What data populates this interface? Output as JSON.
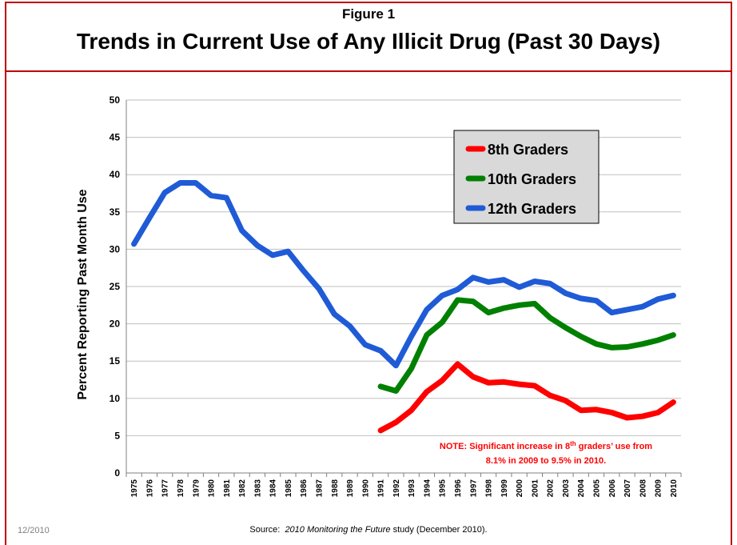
{
  "header": {
    "figure_label": "Figure 1",
    "title": "Trends in Current Use of Any Illicit Drug (Past 30 Days)"
  },
  "footer": {
    "date": "12/2010",
    "source_prefix": "Source:  ",
    "source_italic": "2010 Monitoring the Future",
    "source_suffix": " study (December 2010)."
  },
  "note": {
    "line1_a": "NOTE:  Significant increase in 8",
    "line1_sup": "th",
    "line1_b": " graders’ use from",
    "line2": "8.1% in 2009 to 9.5% in 2010."
  },
  "colors": {
    "frame": "#c00000",
    "grades8": "#ff0000",
    "grades10": "#008000",
    "grades12": "#1f5bd6",
    "legend_bg": "#d9d9d9",
    "note": "#ff0000"
  },
  "chart_data": {
    "type": "line",
    "title": "",
    "ylabel": "Percent Reporting Past Month Use",
    "xlabel": "",
    "ylim": [
      0,
      50
    ],
    "yticks": [
      0,
      5,
      10,
      15,
      20,
      25,
      30,
      35,
      40,
      45,
      50
    ],
    "grid": true,
    "legend": "top-right",
    "x": [
      "1975",
      "1976",
      "1977",
      "1978",
      "1979",
      "1980",
      "1981",
      "1982",
      "1983",
      "1984",
      "1985",
      "1986",
      "1987",
      "1988",
      "1989",
      "1990",
      "1991",
      "1992",
      "1993",
      "1994",
      "1995",
      "1996",
      "1997",
      "1998",
      "1999",
      "2000",
      "2001",
      "2002",
      "2003",
      "2004",
      "2005",
      "2006",
      "2007",
      "2008",
      "2009",
      "2010"
    ],
    "series": [
      {
        "name": "8th Graders",
        "color": "#ff0000",
        "values": [
          null,
          null,
          null,
          null,
          null,
          null,
          null,
          null,
          null,
          null,
          null,
          null,
          null,
          null,
          null,
          null,
          5.7,
          6.8,
          8.4,
          10.9,
          12.4,
          14.6,
          12.9,
          12.1,
          12.2,
          11.9,
          11.7,
          10.4,
          9.7,
          8.4,
          8.5,
          8.1,
          7.4,
          7.6,
          8.1,
          9.5
        ]
      },
      {
        "name": "10th Graders",
        "color": "#008000",
        "values": [
          null,
          null,
          null,
          null,
          null,
          null,
          null,
          null,
          null,
          null,
          null,
          null,
          null,
          null,
          null,
          null,
          11.6,
          11.0,
          14.0,
          18.5,
          20.2,
          23.2,
          23.0,
          21.5,
          22.1,
          22.5,
          22.7,
          20.8,
          19.5,
          18.3,
          17.3,
          16.8,
          16.9,
          17.3,
          17.8,
          18.5
        ]
      },
      {
        "name": "12th Graders",
        "color": "#1f5bd6",
        "values": [
          30.7,
          34.2,
          37.6,
          38.9,
          38.9,
          37.2,
          36.9,
          32.5,
          30.5,
          29.2,
          29.7,
          27.1,
          24.7,
          21.3,
          19.7,
          17.2,
          16.4,
          14.4,
          18.3,
          21.9,
          23.8,
          24.6,
          26.2,
          25.6,
          25.9,
          24.9,
          25.7,
          25.4,
          24.1,
          23.4,
          23.1,
          21.5,
          21.9,
          22.3,
          23.3,
          23.8
        ]
      }
    ]
  }
}
